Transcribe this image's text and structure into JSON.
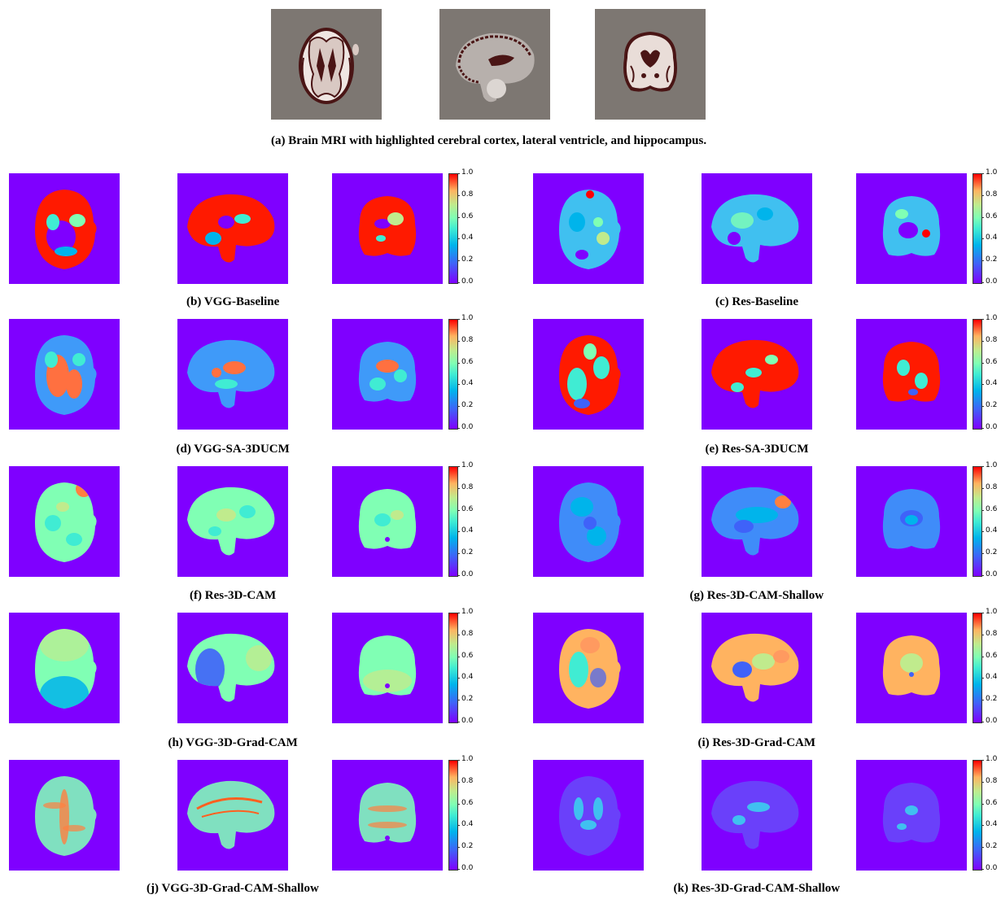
{
  "caption_a": "(a) Brain MRI with highlighted cerebral cortex, lateral ventricle, and hippocampus.",
  "colorbar_ticks": [
    "1.0",
    "0.8",
    "0.6",
    "0.4",
    "0.2",
    "0.0"
  ],
  "panels": [
    {
      "id": "b",
      "caption": "(b) VGG-Baseline",
      "style": "vgg_baseline"
    },
    {
      "id": "c",
      "caption": "(c) Res-Baseline",
      "style": "res_baseline"
    },
    {
      "id": "d",
      "caption": "(d) VGG-SA-3DUCM",
      "style": "vgg_sa"
    },
    {
      "id": "e",
      "caption": "(e) Res-SA-3DUCM",
      "style": "res_sa"
    },
    {
      "id": "f",
      "caption": "(f) Res-3D-CAM",
      "style": "res_cam"
    },
    {
      "id": "g",
      "caption": "(g) Res-3D-CAM-Shallow",
      "style": "res_cam_shallow"
    },
    {
      "id": "h",
      "caption": "(h) VGG-3D-Grad-CAM",
      "style": "vgg_gradcam"
    },
    {
      "id": "i",
      "caption": "(i) Res-3D-Grad-CAM",
      "style": "res_gradcam"
    },
    {
      "id": "j",
      "caption": "(j) VGG-3D-Grad-CAM-Shallow",
      "style": "vgg_gradcam_shallow"
    },
    {
      "id": "k",
      "caption": "(k) Res-3D-Grad-CAM-Shallow",
      "style": "res_gradcam_shallow"
    }
  ],
  "colors": {
    "background_heatmap": "#7f00ff",
    "mri_background": "#7d7772",
    "highlight": "#4a1515"
  }
}
